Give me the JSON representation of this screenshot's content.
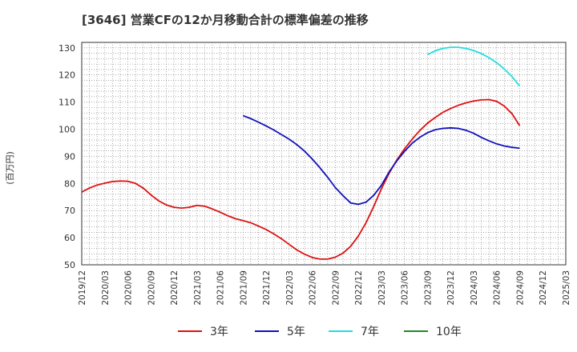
{
  "chart_data": {
    "type": "line",
    "title": "[3646]  営業CFの12か月移動合計の標準偏差の推移",
    "ylabel": "(百万円)",
    "xlabel": "",
    "ylim": [
      50,
      132
    ],
    "yticks": [
      50,
      60,
      70,
      80,
      90,
      100,
      110,
      120,
      130
    ],
    "x_start": "2019/12",
    "xticks": [
      "2019/12",
      "2020/03",
      "2020/06",
      "2020/09",
      "2020/12",
      "2021/03",
      "2021/06",
      "2021/09",
      "2021/12",
      "2022/03",
      "2022/06",
      "2022/09",
      "2022/12",
      "2023/03",
      "2023/06",
      "2023/09",
      "2023/12",
      "2024/03",
      "2024/06",
      "2024/09",
      "2024/12",
      "2025/03"
    ],
    "grid": true,
    "legend_position": "bottom",
    "series": [
      {
        "name": "3年",
        "color": "#dd1111",
        "x": [
          "2019/12",
          "2020/01",
          "2020/02",
          "2020/03",
          "2020/04",
          "2020/05",
          "2020/06",
          "2020/07",
          "2020/08",
          "2020/09",
          "2020/10",
          "2020/11",
          "2020/12",
          "2021/01",
          "2021/02",
          "2021/03",
          "2021/04",
          "2021/05",
          "2021/06",
          "2021/07",
          "2021/08",
          "2021/09",
          "2021/10",
          "2021/11",
          "2021/12",
          "2022/01",
          "2022/02",
          "2022/03",
          "2022/04",
          "2022/05",
          "2022/06",
          "2022/07",
          "2022/08",
          "2022/09",
          "2022/10",
          "2022/11",
          "2022/12",
          "2023/01",
          "2023/02",
          "2023/03",
          "2023/04",
          "2023/05",
          "2023/06",
          "2023/07",
          "2023/08",
          "2023/09",
          "2023/10",
          "2023/11",
          "2023/12",
          "2024/01",
          "2024/02",
          "2024/03",
          "2024/04",
          "2024/05",
          "2024/06",
          "2024/07",
          "2024/08",
          "2024/09"
        ],
        "values": [
          76.8,
          78.3,
          79.4,
          80.1,
          80.7,
          80.9,
          80.8,
          80.0,
          78.3,
          75.8,
          73.6,
          72.1,
          71.2,
          70.9,
          71.2,
          71.9,
          71.6,
          70.6,
          69.4,
          68.1,
          67.0,
          66.3,
          65.5,
          64.3,
          63.0,
          61.4,
          59.6,
          57.5,
          55.5,
          53.9,
          52.7,
          52.1,
          52.1,
          52.8,
          54.3,
          56.8,
          60.6,
          65.5,
          71.5,
          78.0,
          83.7,
          88.6,
          92.7,
          96.3,
          99.5,
          102.2,
          104.3,
          106.2,
          107.6,
          108.8,
          109.7,
          110.4,
          110.8,
          110.9,
          110.3,
          108.5,
          105.7,
          101.3
        ]
      },
      {
        "name": "5年",
        "color": "#1111bb",
        "x": [
          "2021/09",
          "2021/10",
          "2021/11",
          "2021/12",
          "2022/01",
          "2022/02",
          "2022/03",
          "2022/04",
          "2022/05",
          "2022/06",
          "2022/07",
          "2022/08",
          "2022/09",
          "2022/10",
          "2022/11",
          "2022/12",
          "2023/01",
          "2023/02",
          "2023/03",
          "2023/04",
          "2023/05",
          "2023/06",
          "2023/07",
          "2023/08",
          "2023/09",
          "2023/10",
          "2023/11",
          "2023/12",
          "2024/01",
          "2024/02",
          "2024/03",
          "2024/04",
          "2024/05",
          "2024/06",
          "2024/07",
          "2024/08",
          "2024/09"
        ],
        "values": [
          105.0,
          103.9,
          102.6,
          101.2,
          99.7,
          98.0,
          96.3,
          94.3,
          91.9,
          89.0,
          85.8,
          82.3,
          78.5,
          75.5,
          72.8,
          72.3,
          73.1,
          75.6,
          79.3,
          84.2,
          88.3,
          91.8,
          94.8,
          97.0,
          98.7,
          99.8,
          100.3,
          100.5,
          100.3,
          99.6,
          98.5,
          97.0,
          95.7,
          94.6,
          93.8,
          93.3,
          93.0
        ]
      },
      {
        "name": "7年",
        "color": "#22dddd",
        "x": [
          "2023/09",
          "2023/10",
          "2023/11",
          "2023/12",
          "2024/01",
          "2024/02",
          "2024/03",
          "2024/04",
          "2024/05",
          "2024/06",
          "2024/07",
          "2024/08",
          "2024/09"
        ],
        "values": [
          127.5,
          128.9,
          129.8,
          130.2,
          130.2,
          129.8,
          129.0,
          127.9,
          126.4,
          124.5,
          122.2,
          119.4,
          115.9
        ]
      },
      {
        "name": "10年",
        "color": "#228822",
        "x": [],
        "values": []
      }
    ]
  }
}
